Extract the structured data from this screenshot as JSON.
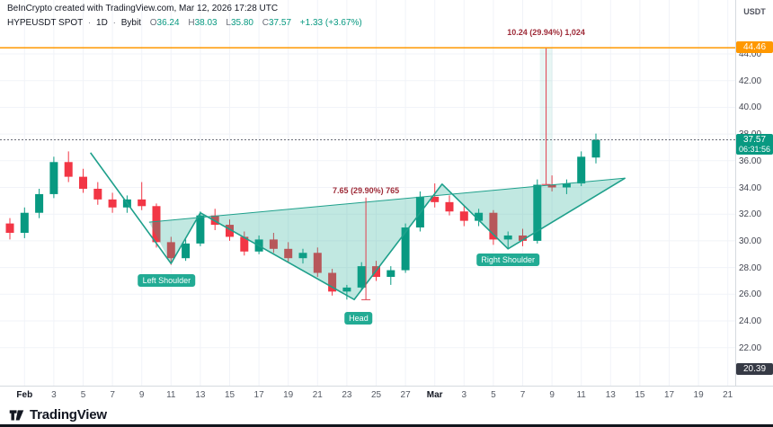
{
  "header": {
    "attribution": "BeInCrypto created with TradingView.com, Mar 12, 2026 17:28 UTC",
    "symbol": "HYPEUSDT SPOT",
    "separator": "·",
    "interval": "1D",
    "exchange": "Bybit",
    "ohlc": {
      "o_label": "O",
      "o": "36.24",
      "h_label": "H",
      "h": "38.03",
      "l_label": "L",
      "l": "35.80",
      "c_label": "C",
      "c": "37.57",
      "change": "+1.33 (+3.67%)"
    },
    "currency_label": "USDT"
  },
  "chart_data": {
    "type": "candlestick",
    "symbol": "HYPEUSDT",
    "interval": "1D",
    "exchange": "Bybit",
    "ylim": [
      20.39,
      44.46
    ],
    "grid": true,
    "y_axis": {
      "ticks": [
        {
          "p": 44,
          "label": "44.00"
        },
        {
          "p": 42,
          "label": "42.00"
        },
        {
          "p": 40,
          "label": "40.00"
        },
        {
          "p": 38,
          "label": "38.00"
        },
        {
          "p": 36,
          "label": "36.00"
        },
        {
          "p": 34,
          "label": "34.00"
        },
        {
          "p": 32,
          "label": "32.00"
        },
        {
          "p": 30,
          "label": "30.00"
        },
        {
          "p": 28,
          "label": "28.00"
        },
        {
          "p": 26,
          "label": "26.00"
        },
        {
          "p": 24,
          "label": "24.00"
        },
        {
          "p": 22,
          "label": "22.00"
        }
      ]
    },
    "x_axis": {
      "ticks": [
        {
          "i": 1,
          "label": "Feb",
          "month": true
        },
        {
          "i": 3,
          "label": "3"
        },
        {
          "i": 5,
          "label": "5"
        },
        {
          "i": 7,
          "label": "7"
        },
        {
          "i": 9,
          "label": "9"
        },
        {
          "i": 11,
          "label": "11"
        },
        {
          "i": 13,
          "label": "13"
        },
        {
          "i": 15,
          "label": "15"
        },
        {
          "i": 17,
          "label": "17"
        },
        {
          "i": 19,
          "label": "19"
        },
        {
          "i": 21,
          "label": "21"
        },
        {
          "i": 23,
          "label": "23"
        },
        {
          "i": 25,
          "label": "25"
        },
        {
          "i": 27,
          "label": "27"
        },
        {
          "i": 29,
          "label": "Mar",
          "month": true
        },
        {
          "i": 31,
          "label": "3"
        },
        {
          "i": 33,
          "label": "5"
        },
        {
          "i": 35,
          "label": "7"
        },
        {
          "i": 37,
          "label": "9"
        },
        {
          "i": 39,
          "label": "11"
        },
        {
          "i": 41,
          "label": "13"
        },
        {
          "i": 43,
          "label": "15"
        },
        {
          "i": 45,
          "label": "17"
        },
        {
          "i": 47,
          "label": "19"
        },
        {
          "i": 49,
          "label": "21"
        }
      ]
    },
    "candles": [
      [
        31.3,
        31.7,
        30.1,
        30.6
      ],
      [
        30.6,
        32.5,
        30.2,
        32.1
      ],
      [
        32.1,
        33.9,
        31.7,
        33.5
      ],
      [
        33.5,
        36.3,
        33.2,
        35.9
      ],
      [
        35.9,
        36.7,
        34.4,
        34.8
      ],
      [
        34.8,
        35.4,
        33.6,
        33.9
      ],
      [
        33.9,
        34.4,
        32.7,
        33.1
      ],
      [
        33.1,
        33.6,
        32.1,
        32.5
      ],
      [
        32.5,
        33.4,
        32.1,
        33.1
      ],
      [
        33.1,
        34.4,
        32.3,
        32.6
      ],
      [
        32.6,
        32.8,
        29.5,
        29.9
      ],
      [
        29.9,
        30.3,
        28.2,
        28.7
      ],
      [
        28.7,
        30.1,
        28.5,
        29.8
      ],
      [
        29.8,
        32.2,
        29.6,
        31.9
      ],
      [
        31.9,
        32.4,
        30.8,
        31.2
      ],
      [
        31.2,
        31.6,
        30.0,
        30.3
      ],
      [
        30.3,
        30.7,
        28.9,
        29.2
      ],
      [
        29.2,
        30.4,
        29.0,
        30.1
      ],
      [
        30.1,
        30.6,
        29.1,
        29.4
      ],
      [
        29.4,
        29.9,
        28.4,
        28.7
      ],
      [
        28.7,
        29.4,
        28.3,
        29.1
      ],
      [
        29.1,
        29.5,
        27.3,
        27.6
      ],
      [
        27.6,
        27.9,
        25.9,
        26.2
      ],
      [
        26.2,
        26.7,
        25.6,
        26.5
      ],
      [
        26.5,
        28.4,
        26.3,
        28.1
      ],
      [
        28.1,
        28.5,
        27.0,
        27.3
      ],
      [
        27.3,
        28.1,
        26.7,
        27.8
      ],
      [
        27.8,
        31.3,
        27.6,
        31.0
      ],
      [
        31.0,
        33.7,
        30.7,
        33.3
      ],
      [
        33.3,
        34.3,
        32.5,
        32.9
      ],
      [
        32.9,
        33.4,
        31.9,
        32.2
      ],
      [
        32.2,
        32.7,
        31.1,
        31.5
      ],
      [
        31.5,
        32.4,
        31.1,
        32.1
      ],
      [
        32.1,
        32.3,
        29.7,
        30.1
      ],
      [
        30.1,
        30.7,
        29.4,
        30.4
      ],
      [
        30.4,
        30.9,
        29.6,
        30.0
      ],
      [
        30.0,
        34.6,
        29.8,
        34.2
      ],
      [
        34.2,
        34.9,
        33.7,
        34.0
      ],
      [
        34.0,
        34.6,
        33.5,
        34.3
      ],
      [
        34.3,
        36.7,
        34.1,
        36.3
      ],
      [
        36.24,
        38.03,
        35.8,
        37.57
      ]
    ],
    "pattern": {
      "name": "inverse-head-and-shoulders",
      "labels": [
        {
          "text": "Left Shoulder",
          "i": 10.7,
          "p": 27.0
        },
        {
          "text": "Head",
          "i": 23.8,
          "p": 24.2
        },
        {
          "text": "Right Shoulder",
          "i": 34.0,
          "p": 28.6
        }
      ],
      "line_points": [
        {
          "i": 5.5,
          "p": 36.6
        },
        {
          "i": 11,
          "p": 28.3
        },
        {
          "i": 13,
          "p": 32.1
        },
        {
          "i": 23.5,
          "p": 25.6
        },
        {
          "i": 29.5,
          "p": 34.25
        },
        {
          "i": 34,
          "p": 29.4
        },
        {
          "i": 42,
          "p": 34.7
        }
      ],
      "neckline": [
        {
          "i": 9.5,
          "p": 31.4
        },
        {
          "i": 42,
          "p": 34.7
        }
      ]
    },
    "measurements": [
      {
        "text": "7.65 (29.90%) 765",
        "i": 24.3,
        "p_from": 33.24,
        "p_to": 25.59,
        "band": false
      },
      {
        "text": "10.24 (29.94%) 1,024",
        "i": 36.6,
        "p_from": 44.46,
        "p_to": 34.22,
        "band": true
      }
    ],
    "target_line": {
      "price": 44.46,
      "label": "44.46"
    },
    "current_price": {
      "price": 37.57,
      "label": "37.57",
      "countdown": "06:31:56"
    },
    "low_axis_label": {
      "price": 20.39,
      "label": "20.39"
    }
  },
  "colors": {
    "up": "#089981",
    "down": "#f23645",
    "pattern": "#1ea08b",
    "pattern_fill": "rgba(34,171,148,0.28)",
    "band_fill": "rgba(34,171,148,0.10)",
    "target": "#ff9800",
    "measure": "#e03e4d",
    "current_dash": "#6a6d78",
    "grid": "#f1f3f8",
    "badge_dark": "#363a45"
  },
  "footer": {
    "brand": "TradingView"
  }
}
